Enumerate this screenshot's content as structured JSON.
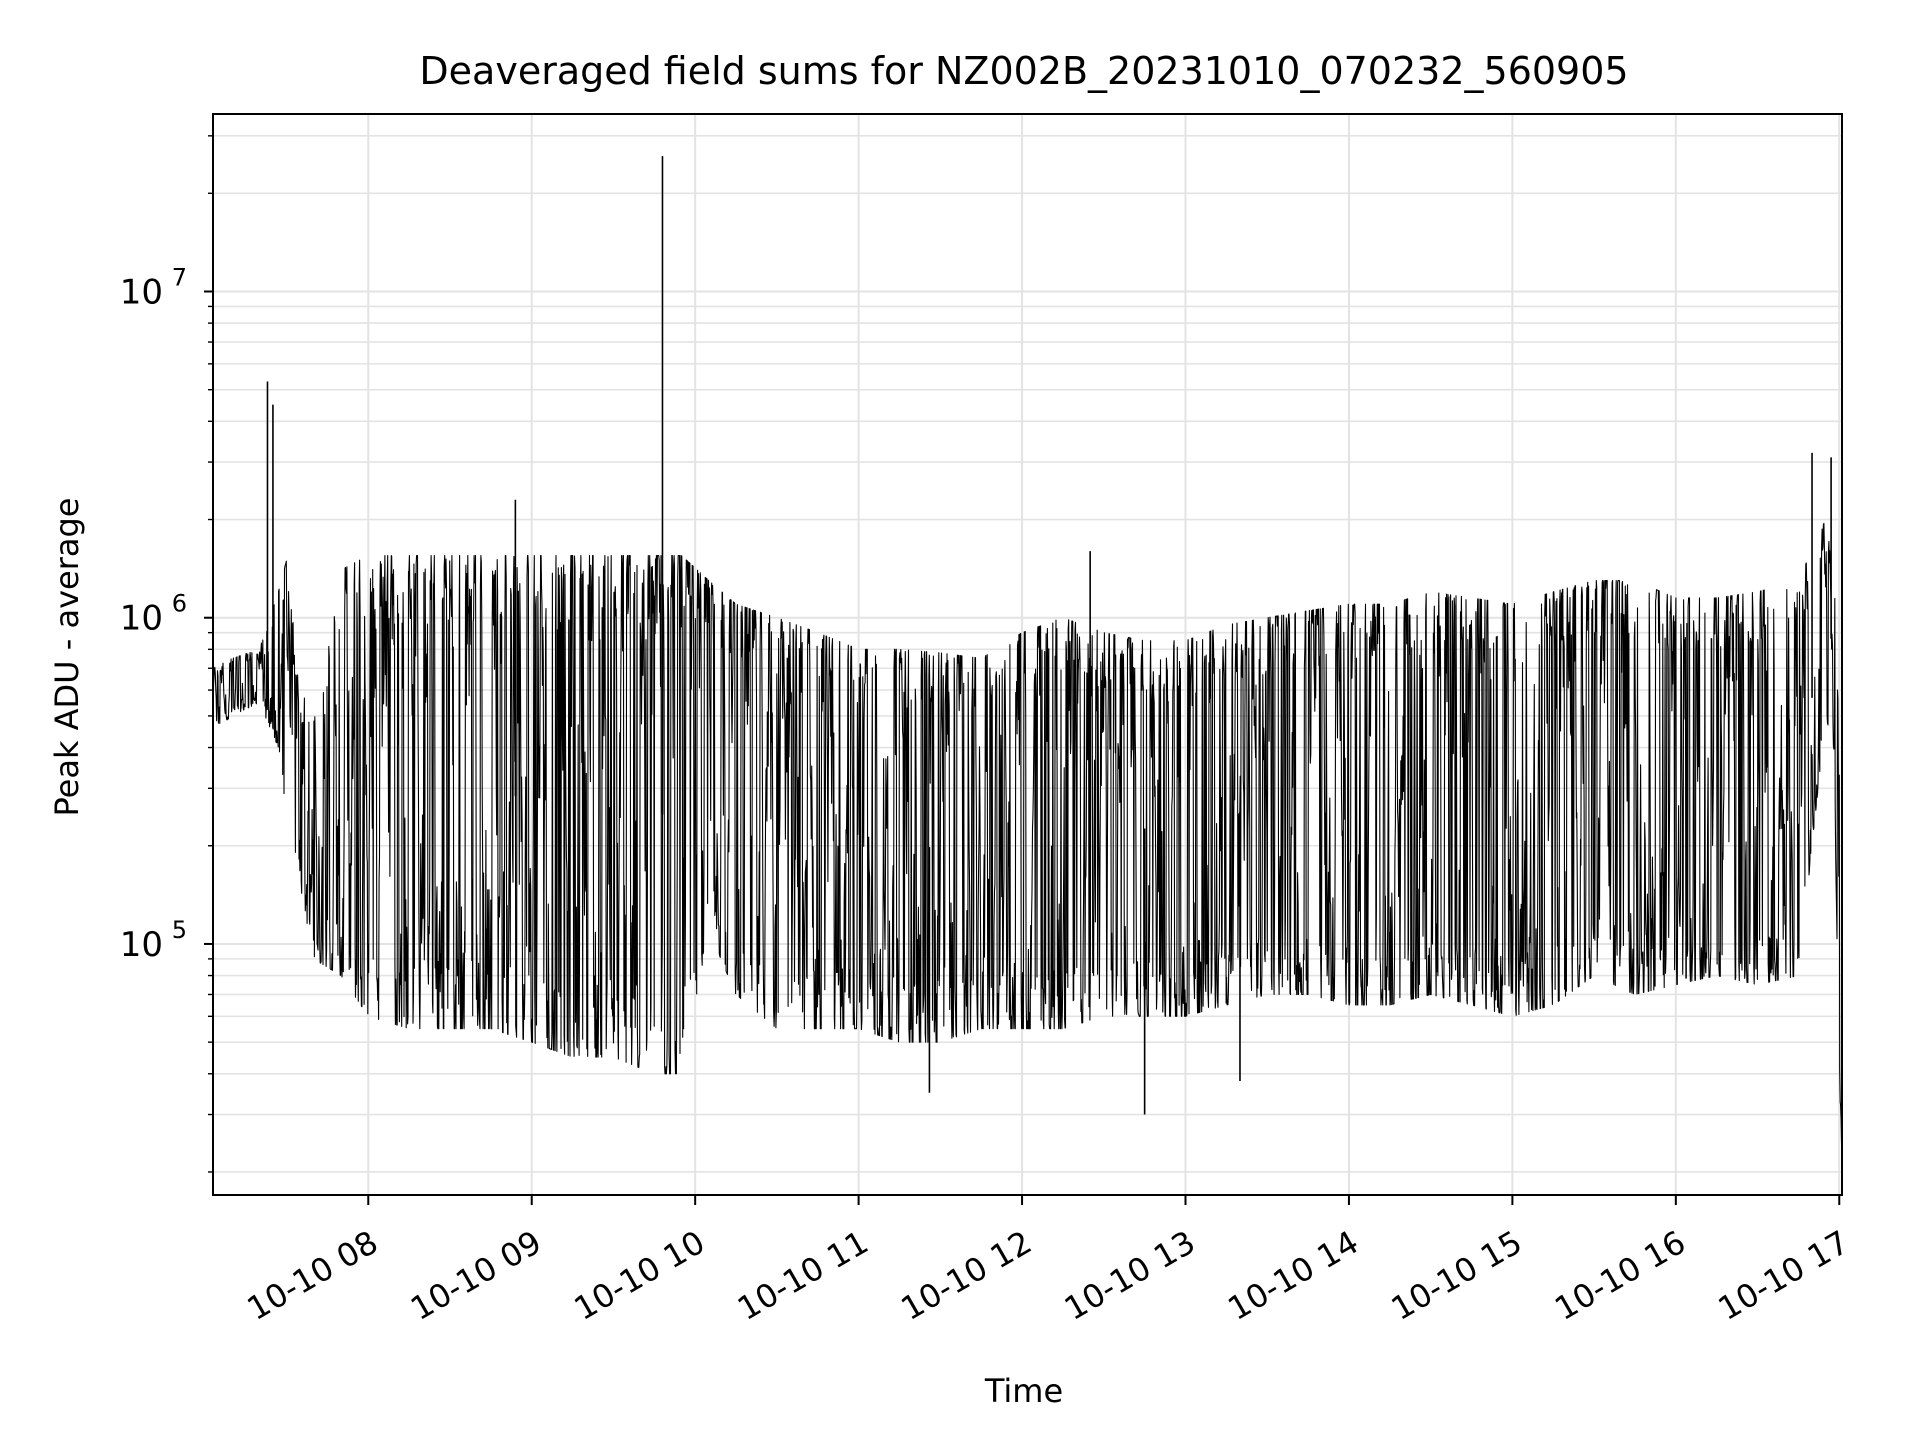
{
  "chart_data": {
    "type": "line",
    "title": "Deaveraged field sums for NZ002B_20231010_070232_560905",
    "xlabel": "Time",
    "ylabel": "Peak ADU - average",
    "xscale": "time",
    "yscale": "log",
    "xlim": [
      "2023-10-10 07:03",
      "2023-10-10 17:01"
    ],
    "ylim": [
      17000,
      35000000
    ],
    "grid": true,
    "line_color": "#000000",
    "x_ticks": [
      {
        "value": "2023-10-10 08:00",
        "label": "10-10 08"
      },
      {
        "value": "2023-10-10 09:00",
        "label": "10-10 09"
      },
      {
        "value": "2023-10-10 10:00",
        "label": "10-10 10"
      },
      {
        "value": "2023-10-10 11:00",
        "label": "10-10 11"
      },
      {
        "value": "2023-10-10 12:00",
        "label": "10-10 12"
      },
      {
        "value": "2023-10-10 13:00",
        "label": "10-10 13"
      },
      {
        "value": "2023-10-10 14:00",
        "label": "10-10 14"
      },
      {
        "value": "2023-10-10 15:00",
        "label": "10-10 15"
      },
      {
        "value": "2023-10-10 16:00",
        "label": "10-10 16"
      },
      {
        "value": "2023-10-10 17:00",
        "label": "10-10 17"
      }
    ],
    "y_ticks": [
      {
        "value": 100000,
        "base": "10",
        "exp": "5"
      },
      {
        "value": 1000000,
        "base": "10",
        "exp": "6"
      },
      {
        "value": 10000000,
        "base": "10",
        "exp": "7"
      }
    ],
    "series": [
      {
        "envelope": {
          "x": [
            "2023-10-10 07:03",
            "2023-10-10 07:10",
            "2023-10-10 07:20",
            "2023-10-10 07:27",
            "2023-10-10 07:30",
            "2023-10-10 07:35",
            "2023-10-10 07:40",
            "2023-10-10 07:50",
            "2023-10-10 08:00",
            "2023-10-10 08:15",
            "2023-10-10 08:30",
            "2023-10-10 08:45",
            "2023-10-10 09:00",
            "2023-10-10 09:15",
            "2023-10-10 09:30",
            "2023-10-10 09:45",
            "2023-10-10 09:55",
            "2023-10-10 10:05",
            "2023-10-10 10:15",
            "2023-10-10 10:30",
            "2023-10-10 10:45",
            "2023-10-10 11:00",
            "2023-10-10 11:15",
            "2023-10-10 11:30",
            "2023-10-10 11:45",
            "2023-10-10 12:00",
            "2023-10-10 12:15",
            "2023-10-10 12:30",
            "2023-10-10 12:45",
            "2023-10-10 13:00",
            "2023-10-10 13:15",
            "2023-10-10 13:30",
            "2023-10-10 13:45",
            "2023-10-10 14:00",
            "2023-10-10 14:15",
            "2023-10-10 14:30",
            "2023-10-10 14:45",
            "2023-10-10 15:00",
            "2023-10-10 15:15",
            "2023-10-10 15:30",
            "2023-10-10 15:45",
            "2023-10-10 16:00",
            "2023-10-10 16:15",
            "2023-10-10 16:30",
            "2023-10-10 16:45",
            "2023-10-10 16:55",
            "2023-10-10 16:58",
            "2023-10-10 17:00",
            "2023-10-10 17:01"
          ],
          "high": [
            700000,
            750000,
            800000,
            1200000,
            1500000,
            600000,
            500000,
            1400000,
            1550000,
            1550000,
            1550000,
            1550000,
            1550000,
            1550000,
            1550000,
            1550000,
            1550000,
            1300000,
            1100000,
            1000000,
            900000,
            800000,
            800000,
            780000,
            750000,
            900000,
            1000000,
            900000,
            850000,
            850000,
            950000,
            1000000,
            1050000,
            1100000,
            1100000,
            1200000,
            1150000,
            1100000,
            1200000,
            1300000,
            1300000,
            1150000,
            1150000,
            1200000,
            1300000,
            2000000,
            1600000,
            400000,
            40000
          ],
          "low": [
            450000,
            500000,
            550000,
            400000,
            250000,
            150000,
            90000,
            80000,
            60000,
            55000,
            55000,
            55000,
            50000,
            45000,
            45000,
            40000,
            40000,
            110000,
            70000,
            55000,
            55000,
            55000,
            50000,
            50000,
            55000,
            55000,
            55000,
            60000,
            60000,
            60000,
            65000,
            70000,
            70000,
            65000,
            65000,
            70000,
            65000,
            60000,
            65000,
            80000,
            70000,
            75000,
            80000,
            75000,
            80000,
            500000,
            400000,
            40000,
            22000
          ]
        },
        "spikes": [
          {
            "x": "2023-10-10 07:23",
            "y": 5300000
          },
          {
            "x": "2023-10-10 07:25",
            "y": 4500000
          },
          {
            "x": "2023-10-10 08:54",
            "y": 2300000
          },
          {
            "x": "2023-10-10 09:48",
            "y": 26000000
          },
          {
            "x": "2023-10-10 11:26",
            "y": 35000
          },
          {
            "x": "2023-10-10 12:25",
            "y": 1600000
          },
          {
            "x": "2023-10-10 12:45",
            "y": 30000
          },
          {
            "x": "2023-10-10 13:20",
            "y": 38000
          },
          {
            "x": "2023-10-10 16:50",
            "y": 3200000
          },
          {
            "x": "2023-10-10 16:57",
            "y": 3100000
          }
        ]
      }
    ]
  }
}
